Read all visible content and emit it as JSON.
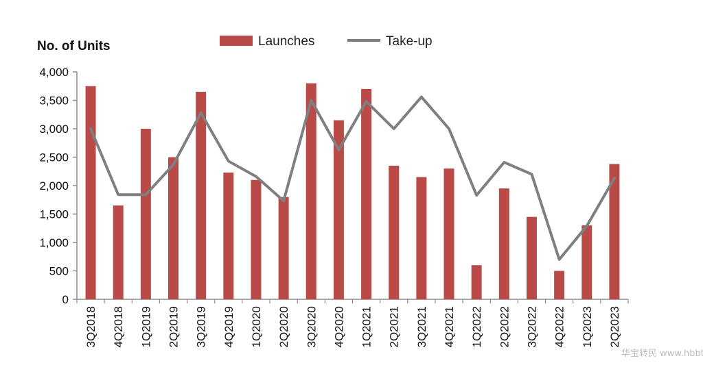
{
  "chart_data": {
    "type": "bar",
    "ylabel": "No. of Units",
    "ylim": [
      0,
      4000
    ],
    "yticks": [
      "0",
      "500",
      "1,000",
      "1,500",
      "2,000",
      "2,500",
      "3,000",
      "3,500",
      "4,000"
    ],
    "categories": [
      "3Q2018",
      "4Q2018",
      "1Q2019",
      "2Q2019",
      "3Q2019",
      "4Q2019",
      "1Q2020",
      "2Q2020",
      "3Q2020",
      "4Q2020",
      "1Q2021",
      "2Q2021",
      "3Q2021",
      "4Q2021",
      "1Q2022",
      "2Q2022",
      "3Q2022",
      "4Q2022",
      "1Q2023",
      "2Q2023"
    ],
    "series": [
      {
        "name": "Launches",
        "type": "bar",
        "color": "#b94a48",
        "values": [
          3750,
          1650,
          3000,
          2500,
          3650,
          2230,
          2100,
          1800,
          3800,
          3150,
          3700,
          2350,
          2150,
          2300,
          600,
          1950,
          1450,
          500,
          1300,
          2380
        ]
      },
      {
        "name": "Take-up",
        "type": "line",
        "color": "#7f7f7f",
        "values": [
          3000,
          1840,
          1840,
          2370,
          3280,
          2430,
          2160,
          1730,
          3500,
          2630,
          3480,
          3000,
          3560,
          3000,
          1830,
          2410,
          2200,
          700,
          1290,
          2130
        ]
      }
    ],
    "legend": "top",
    "grid": false
  },
  "watermark": "华宝转民 www.hbbt.com"
}
